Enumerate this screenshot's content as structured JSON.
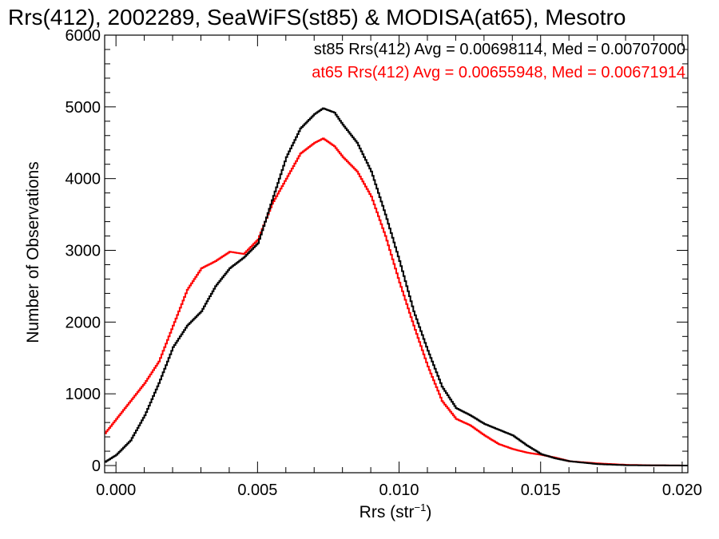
{
  "chart_data": {
    "type": "line",
    "title": "Rrs(412), 2002289, SeaWiFS(st85) & MODISA(at65), Mesotro",
    "xlabel_main": "Rrs (str",
    "xlabel_sup": "−1",
    "xlabel_end": ")",
    "ylabel": "Number of Observations",
    "xlim": [
      -0.0004,
      0.0202
    ],
    "ylim": [
      -100,
      6000
    ],
    "x_ticks": [
      0.0,
      0.005,
      0.01,
      0.015,
      0.02
    ],
    "x_tick_labels": [
      "0.000",
      "0.005",
      "0.010",
      "0.015",
      "0.020"
    ],
    "y_ticks": [
      0,
      1000,
      2000,
      3000,
      4000,
      5000,
      6000
    ],
    "y_tick_labels": [
      "0",
      "1000",
      "2000",
      "3000",
      "4000",
      "5000",
      "6000"
    ],
    "grid": false,
    "legend_position": "top-right",
    "series": [
      {
        "name": "st85",
        "legend": "st85 Rrs(412) Avg = 0.00698114, Med = 0.00707000",
        "color": "#000000",
        "points": [
          [
            -0.0004,
            50
          ],
          [
            0.0,
            150
          ],
          [
            0.0005,
            350
          ],
          [
            0.001,
            700
          ],
          [
            0.0015,
            1150
          ],
          [
            0.002,
            1650
          ],
          [
            0.0025,
            1950
          ],
          [
            0.003,
            2150
          ],
          [
            0.0035,
            2500
          ],
          [
            0.004,
            2750
          ],
          [
            0.0045,
            2900
          ],
          [
            0.005,
            3100
          ],
          [
            0.0055,
            3700
          ],
          [
            0.006,
            4300
          ],
          [
            0.0065,
            4700
          ],
          [
            0.007,
            4900
          ],
          [
            0.0073,
            4980
          ],
          [
            0.0077,
            4920
          ],
          [
            0.008,
            4750
          ],
          [
            0.0085,
            4500
          ],
          [
            0.009,
            4100
          ],
          [
            0.0095,
            3500
          ],
          [
            0.01,
            2850
          ],
          [
            0.0105,
            2150
          ],
          [
            0.011,
            1600
          ],
          [
            0.0115,
            1100
          ],
          [
            0.012,
            800
          ],
          [
            0.0125,
            700
          ],
          [
            0.013,
            580
          ],
          [
            0.0135,
            500
          ],
          [
            0.014,
            420
          ],
          [
            0.0145,
            280
          ],
          [
            0.015,
            160
          ],
          [
            0.0155,
            100
          ],
          [
            0.016,
            60
          ],
          [
            0.017,
            20
          ],
          [
            0.018,
            5
          ],
          [
            0.0202,
            0
          ]
        ]
      },
      {
        "name": "at65",
        "legend": "at65 Rrs(412) Avg = 0.00655948, Med = 0.00671914",
        "color": "#ff0000",
        "points": [
          [
            -0.0004,
            450
          ],
          [
            0.0,
            650
          ],
          [
            0.0005,
            900
          ],
          [
            0.001,
            1150
          ],
          [
            0.0015,
            1450
          ],
          [
            0.002,
            1950
          ],
          [
            0.0025,
            2450
          ],
          [
            0.003,
            2750
          ],
          [
            0.0035,
            2850
          ],
          [
            0.004,
            2980
          ],
          [
            0.0045,
            2950
          ],
          [
            0.005,
            3150
          ],
          [
            0.0055,
            3650
          ],
          [
            0.006,
            4000
          ],
          [
            0.0065,
            4350
          ],
          [
            0.007,
            4500
          ],
          [
            0.0073,
            4560
          ],
          [
            0.0077,
            4450
          ],
          [
            0.008,
            4300
          ],
          [
            0.0085,
            4100
          ],
          [
            0.009,
            3750
          ],
          [
            0.0095,
            3200
          ],
          [
            0.01,
            2550
          ],
          [
            0.0105,
            1950
          ],
          [
            0.011,
            1380
          ],
          [
            0.0115,
            900
          ],
          [
            0.012,
            650
          ],
          [
            0.0125,
            560
          ],
          [
            0.013,
            420
          ],
          [
            0.0135,
            300
          ],
          [
            0.014,
            230
          ],
          [
            0.0145,
            180
          ],
          [
            0.015,
            150
          ],
          [
            0.0155,
            110
          ],
          [
            0.016,
            60
          ],
          [
            0.017,
            30
          ],
          [
            0.018,
            10
          ],
          [
            0.019,
            3
          ],
          [
            0.0202,
            0
          ]
        ]
      }
    ]
  }
}
